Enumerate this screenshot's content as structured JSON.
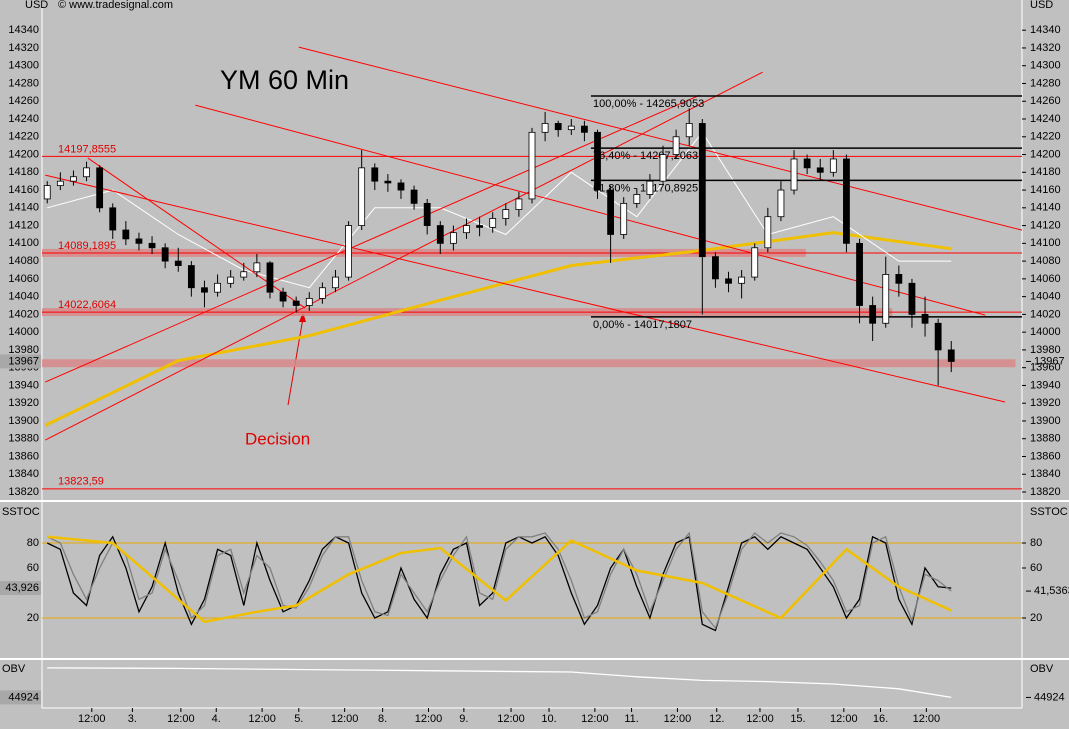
{
  "header": {
    "copyright": "© www.tradesignal.com"
  },
  "chart_data": [
    {
      "type": "candlestick",
      "title": "YM 60 Min",
      "ylabel": "USD",
      "annotation": "Decision",
      "xlim": [
        -0.4,
        74.4
      ],
      "xticks": [
        {
          "value": 3.4,
          "label": "12:00"
        },
        {
          "value": 6.5,
          "label": "3."
        },
        {
          "value": 10.2,
          "label": "12:00"
        },
        {
          "value": 12.9,
          "label": "4."
        },
        {
          "value": 16.4,
          "label": "12:00"
        },
        {
          "value": 19.2,
          "label": "5."
        },
        {
          "value": 22.7,
          "label": "12:00"
        },
        {
          "value": 25.6,
          "label": "8."
        },
        {
          "value": 29.1,
          "label": "12:00"
        },
        {
          "value": 31.8,
          "label": "9."
        },
        {
          "value": 35.4,
          "label": "12:00"
        },
        {
          "value": 38.3,
          "label": "10."
        },
        {
          "value": 41.8,
          "label": "12:00"
        },
        {
          "value": 44.6,
          "label": "11."
        },
        {
          "value": 48.1,
          "label": "12:00"
        },
        {
          "value": 51.1,
          "label": "12."
        },
        {
          "value": 54.4,
          "label": "12:00"
        },
        {
          "value": 57.3,
          "label": "15."
        },
        {
          "value": 60.8,
          "label": "12:00"
        },
        {
          "value": 63.6,
          "label": "16."
        },
        {
          "value": 67.1,
          "label": "12:00"
        }
      ],
      "ylim": [
        13811,
        14374
      ],
      "yticks": [
        13820,
        13840,
        13860,
        13880,
        13900,
        13920,
        13940,
        13960,
        13980,
        14000,
        14020,
        14040,
        14060,
        14080,
        14100,
        14120,
        14140,
        14160,
        14180,
        14200,
        14220,
        14240,
        14260,
        14280,
        14300,
        14320,
        14340
      ],
      "open": [
        14150,
        14165,
        14170,
        14175,
        14185,
        14140,
        14115,
        14105,
        14100,
        14095,
        14080,
        14075,
        14050,
        14045,
        14055,
        14062,
        14068,
        14078,
        14045,
        14035,
        14030,
        14038,
        14050,
        14062,
        14120,
        14185,
        14170,
        14168,
        14160,
        14145,
        14120,
        14100,
        14112,
        14120,
        14118,
        14128,
        14138,
        14150,
        14225,
        14235,
        14228,
        14232,
        14225,
        14160,
        14110,
        14145,
        14155,
        14170,
        14200,
        14220,
        14235,
        14085,
        14060,
        14055,
        14062,
        14095,
        14130,
        14160,
        14195,
        14185,
        14180,
        14195,
        14100,
        14030,
        14010,
        14065,
        14055,
        14020,
        14010,
        13980
      ],
      "close": [
        14165,
        14170,
        14175,
        14185,
        14140,
        14115,
        14105,
        14100,
        14095,
        14080,
        14075,
        14050,
        14045,
        14055,
        14062,
        14068,
        14078,
        14045,
        14035,
        14030,
        14038,
        14050,
        14062,
        14120,
        14185,
        14170,
        14168,
        14160,
        14145,
        14120,
        14100,
        14112,
        14120,
        14118,
        14128,
        14138,
        14150,
        14225,
        14235,
        14228,
        14232,
        14225,
        14160,
        14110,
        14145,
        14155,
        14170,
        14200,
        14220,
        14235,
        14085,
        14060,
        14055,
        14062,
        14095,
        14130,
        14160,
        14195,
        14185,
        14180,
        14195,
        14100,
        14030,
        14010,
        14065,
        14055,
        14020,
        14010,
        13980,
        13967
      ],
      "high": [
        14170,
        14180,
        14182,
        14192,
        14188,
        14145,
        14125,
        14112,
        14108,
        14100,
        14095,
        14080,
        14058,
        14065,
        14070,
        14078,
        14088,
        14080,
        14050,
        14040,
        14045,
        14056,
        14070,
        14125,
        14205,
        14190,
        14178,
        14172,
        14165,
        14150,
        14125,
        14120,
        14128,
        14130,
        14135,
        14145,
        14158,
        14230,
        14248,
        14238,
        14240,
        14238,
        14228,
        14165,
        14152,
        14162,
        14178,
        14210,
        14228,
        14252,
        14240,
        14090,
        14068,
        14070,
        14100,
        14140,
        14170,
        14205,
        14200,
        14195,
        14205,
        14200,
        14105,
        14040,
        14085,
        14075,
        14060,
        14040,
        14015,
        13990
      ],
      "low": [
        14145,
        14160,
        14165,
        14170,
        14135,
        14105,
        14098,
        14092,
        14088,
        14072,
        14068,
        14040,
        14028,
        14040,
        14050,
        14058,
        14062,
        14038,
        14028,
        14022,
        14024,
        14032,
        14045,
        14058,
        14115,
        14160,
        14158,
        14150,
        14138,
        14110,
        14088,
        14092,
        14105,
        14108,
        14112,
        14120,
        14130,
        14145,
        14215,
        14220,
        14222,
        14215,
        14150,
        14078,
        14105,
        14140,
        14150,
        14165,
        14195,
        14210,
        14020,
        14050,
        14045,
        14038,
        14058,
        14090,
        14125,
        14155,
        14178,
        14172,
        14175,
        14090,
        14010,
        13990,
        14005,
        14040,
        14005,
        13995,
        13940,
        13955
      ],
      "current": 13967,
      "series": [
        {
          "color": "#f0c000",
          "x": [
            -0.15,
            10,
            20,
            30,
            40,
            50,
            60,
            69
          ],
          "values": [
            13895,
            13968,
            13996,
            14036,
            14075,
            14092,
            14112,
            14094
          ]
        },
        {
          "color": "#ffffff",
          "x": [
            0,
            5,
            10,
            15,
            20,
            25,
            30,
            35,
            40,
            45,
            50,
            55,
            60,
            65,
            69
          ],
          "values": [
            14140,
            14160,
            14110,
            14070,
            14050,
            14140,
            14140,
            14110,
            14180,
            14130,
            14225,
            14110,
            14130,
            14080,
            14080
          ]
        }
      ],
      "hlines": [
        {
          "value": 14197.8555,
          "label": "14197,8555"
        },
        {
          "value": 14089.1895,
          "label": "14089,1895"
        },
        {
          "value": 14022.6064,
          "label": "14022,6064"
        },
        {
          "value": 13823.59,
          "label": "13823,59"
        }
      ],
      "bands": [
        {
          "value": 14089.1895,
          "x": [
            -0.4,
            57.9
          ]
        },
        {
          "value": 14022.6064,
          "x": [
            -0.4,
            64.5
          ]
        },
        {
          "value": 13965,
          "x": [
            -0.4,
            73.9
          ]
        }
      ],
      "fib": [
        {
          "value": 14265.9053,
          "label": "100,00% - 14265,9053"
        },
        {
          "value": 14207.2063,
          "label": "76,40% - 14207,2063"
        },
        {
          "value": 14170.8925,
          "label": "61,80% - 14170,8925"
        },
        {
          "value": 14017.1807,
          "label": "0,00% - 14017,1807"
        }
      ],
      "fib_start": 41.5,
      "trendlines": [
        {
          "x": [
            19.2,
            74.4
          ],
          "y": [
            14320.9,
            14114.9
          ]
        },
        {
          "x": [
            11.3,
            71.6
          ],
          "y": [
            14255.6,
            14019.2
          ]
        },
        {
          "x": [
            -0.15,
            73.1
          ],
          "y": [
            14176.8,
            13921.3
          ]
        },
        {
          "x": [
            -0.15,
            54.6
          ],
          "y": [
            13878.5,
            14292.7
          ]
        },
        {
          "x": [
            -0.15,
            49.8
          ],
          "y": [
            13943.8,
            14266.8
          ]
        },
        {
          "x": [
            3.1,
            19.7
          ],
          "y": [
            14196,
            14027
          ]
        }
      ]
    },
    {
      "type": "line",
      "ylabel": "SSTOC",
      "ylim": [
        -12,
        112
      ],
      "yticks": [
        20,
        60,
        80
      ],
      "levels": [
        80,
        20
      ],
      "levels_color": "#e8a800",
      "series": [
        {
          "color": "#000000",
          "last_label": "43,926",
          "values": [
            80,
            75,
            40,
            30,
            70,
            85,
            60,
            25,
            45,
            80,
            40,
            15,
            35,
            75,
            70,
            30,
            80,
            50,
            25,
            30,
            50,
            75,
            85,
            80,
            40,
            20,
            25,
            60,
            35,
            20,
            55,
            75,
            80,
            30,
            40,
            80,
            85,
            80,
            85,
            70,
            40,
            15,
            30,
            60,
            75,
            45,
            20,
            55,
            80,
            85,
            15,
            10,
            45,
            80,
            85,
            75,
            85,
            80,
            75,
            60,
            45,
            20,
            35,
            85,
            80,
            35,
            15,
            60,
            45,
            43.926
          ]
        },
        {
          "color": "#808080",
          "last_label": "41,5363",
          "values": [
            85,
            80,
            55,
            35,
            60,
            80,
            70,
            35,
            40,
            75,
            50,
            20,
            30,
            70,
            75,
            40,
            70,
            60,
            30,
            28,
            45,
            70,
            85,
            85,
            50,
            25,
            22,
            55,
            40,
            25,
            50,
            70,
            85,
            40,
            35,
            75,
            85,
            85,
            88,
            75,
            50,
            20,
            25,
            55,
            75,
            55,
            25,
            50,
            75,
            88,
            25,
            12,
            40,
            75,
            88,
            80,
            88,
            85,
            78,
            65,
            50,
            25,
            30,
            80,
            85,
            45,
            18,
            55,
            50,
            41.5363
          ]
        },
        {
          "color": "#f0c000",
          "x": [
            0,
            5,
            10,
            12,
            16,
            19,
            23,
            27,
            30,
            35,
            40,
            45,
            50,
            56,
            61,
            65,
            69
          ],
          "values": [
            85,
            80,
            35,
            17,
            25,
            30,
            55,
            72,
            76,
            34,
            82,
            58,
            48,
            20,
            75,
            45,
            26
          ]
        }
      ]
    },
    {
      "type": "line",
      "ylabel": "OBV",
      "ylim": [
        44880,
        45080
      ],
      "current": 44924,
      "series": [
        {
          "color": "#ffffff",
          "x": [
            0,
            10,
            20,
            30,
            40,
            45,
            50,
            55,
            60,
            65,
            69
          ],
          "values": [
            45047,
            45045,
            45040,
            45035,
            45030,
            45010,
            44995,
            44990,
            44980,
            44960,
            44924
          ]
        }
      ]
    }
  ]
}
